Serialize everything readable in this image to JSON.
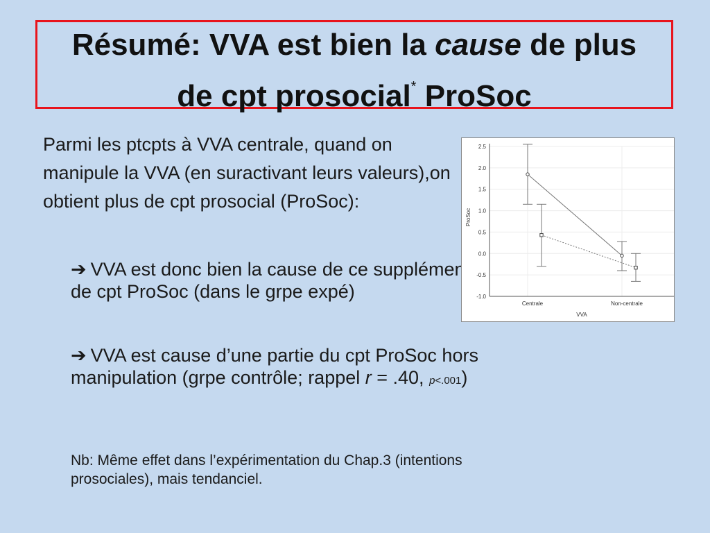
{
  "title": {
    "part1": "Résumé: VVA est bien la ",
    "italic": "cause",
    "part2": " de plus",
    "line2a": "de cpt prosocial",
    "sup": "*",
    "line2b": " ProSoc"
  },
  "intro": "Parmi les ptcpts à VVA centrale, quand on manipule la VVA (en suractivant leurs valeurs),on obtient plus de cpt prosocial (ProSoc):",
  "bullet1": "VVA est donc bien la cause de ce supplément de cpt ProSoc (dans le grpe expé)",
  "bullet2": {
    "text": "VVA est cause d’une partie du cpt ProSoc hors manipulation (grpe contrôle; rappel ",
    "r": "r",
    "r_value": " = .40, ",
    "p": "p",
    "p_value": "<.001",
    "close": ")"
  },
  "note": "Nb: Même effet dans l’expérimentation du Chap.3 (intentions prosociales), mais tendanciel.",
  "chart_data": {
    "type": "line",
    "categories": [
      "Centrale",
      "Non-centrale"
    ],
    "xlabel": "VVA",
    "ylabel": "ProSoc",
    "ylim": [
      -1.0,
      2.5
    ],
    "yticks": [
      "2.5",
      "2.0",
      "1.5",
      "1.0",
      "0.5",
      "0.0",
      "-0.5",
      "-1.0"
    ],
    "grid": true,
    "series": [
      {
        "style": "solid",
        "marker": "circle",
        "values": [
          1.85,
          -0.05
        ],
        "ci_low": [
          1.15,
          -0.4
        ],
        "ci_high": [
          2.55,
          0.28
        ]
      },
      {
        "style": "dotted",
        "marker": "square",
        "values": [
          0.43,
          -0.33
        ],
        "ci_low": [
          -0.3,
          -0.65
        ],
        "ci_high": [
          1.15,
          0.0
        ]
      }
    ]
  }
}
